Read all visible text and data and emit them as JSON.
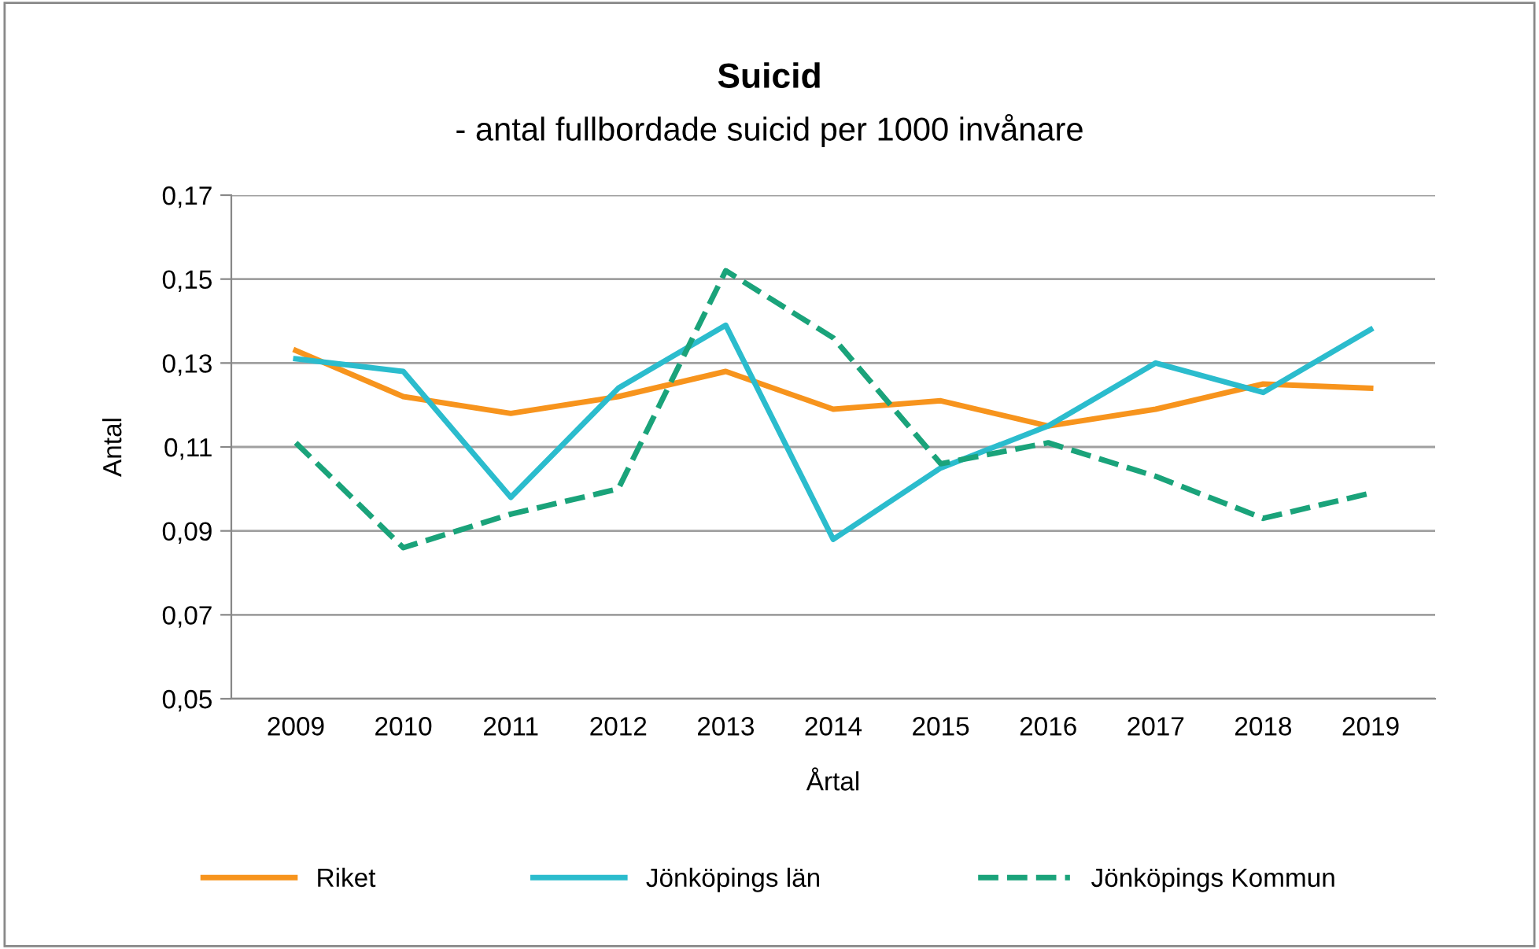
{
  "chart_data": {
    "type": "line",
    "title": "Suicid",
    "subtitle": "- antal fullbordade suicid per 1000 invånare",
    "xlabel": "Årtal",
    "ylabel": "Antal",
    "categories": [
      "2009",
      "2010",
      "2011",
      "2012",
      "2013",
      "2014",
      "2015",
      "2016",
      "2017",
      "2018",
      "2019"
    ],
    "series": [
      {
        "name": "Riket",
        "color": "#f7941d",
        "line_style": "solid",
        "values": [
          0.133,
          0.122,
          0.118,
          0.122,
          0.128,
          0.119,
          0.121,
          0.115,
          0.119,
          0.125,
          0.124
        ]
      },
      {
        "name": "Jönköpings län",
        "color": "#2bbccd",
        "line_style": "solid",
        "values": [
          0.131,
          0.128,
          0.098,
          0.124,
          0.139,
          0.088,
          0.105,
          0.115,
          0.13,
          0.123,
          0.138
        ]
      },
      {
        "name": "Jönköpings Kommun",
        "color": "#1aa37a",
        "line_style": "dashed",
        "values": [
          0.111,
          0.086,
          0.094,
          0.1,
          0.152,
          0.136,
          0.106,
          0.111,
          0.103,
          0.093,
          0.099
        ]
      }
    ],
    "ylim": [
      0.05,
      0.17
    ],
    "yticks": [
      {
        "value": 0.05,
        "label": "0,05"
      },
      {
        "value": 0.07,
        "label": "0,07"
      },
      {
        "value": 0.09,
        "label": "0,09"
      },
      {
        "value": 0.11,
        "label": "0,11"
      },
      {
        "value": 0.13,
        "label": "0,13"
      },
      {
        "value": 0.15,
        "label": "0,15"
      },
      {
        "value": 0.17,
        "label": "0,17"
      }
    ],
    "grid": "y",
    "legend": "bottom",
    "marker": "none"
  }
}
